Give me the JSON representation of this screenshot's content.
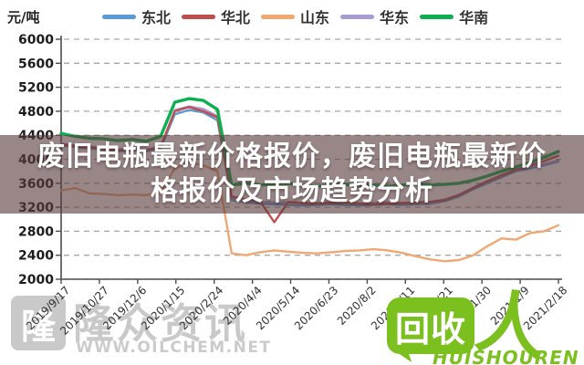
{
  "overlay": {
    "title_line1": "废旧电瓶最新价格报价，废旧电瓶最新价",
    "title_line2": "格报价及市场趋势分析"
  },
  "watermarks": {
    "oilchem": {
      "logo_char": "隆",
      "name": "隆众资讯",
      "url": "WWW.OILCHEM.NET"
    },
    "huishouren": {
      "badge_text": "回收",
      "person_glyph": "人",
      "wordmark": "HUISHOUREN",
      "brand_color": "#7cc01f"
    }
  },
  "chart_data": {
    "type": "line",
    "unit": "元/吨",
    "legend_position": "top",
    "grid": true,
    "ylim": [
      2000,
      6000
    ],
    "ytick_step": 400,
    "y_ticks": [
      "6000",
      "5600",
      "5200",
      "4800",
      "4400",
      "4000",
      "3600",
      "3200",
      "2800",
      "2400",
      "2000"
    ],
    "x_tick_labels": [
      "2019/9/17",
      "2019/10/27",
      "2019/12/6",
      "2020/1/15",
      "2020/2/24",
      "2020/4/4",
      "2020/5/14",
      "2020/6/23",
      "2020/8/2",
      "2020/9/11",
      "2020/10/21",
      "2020/11/30",
      "2021/1/9",
      "2021/2/18"
    ],
    "series": [
      {
        "name": "东北",
        "color": "#5b9bd5",
        "width": 2.4,
        "draw_order": 1,
        "values": [
          4230,
          4200,
          4180,
          4160,
          4130,
          4150,
          4130,
          4180,
          4750,
          4820,
          4780,
          4650,
          3320,
          3280,
          3260,
          3250,
          3240,
          3230,
          3240,
          3250,
          3240,
          3230,
          3240,
          3250,
          3240,
          3250,
          3260,
          3300,
          3380,
          3500,
          3600,
          3700,
          3800,
          3850,
          3900,
          3960
        ]
      },
      {
        "name": "华北",
        "color": "#bf4f4c",
        "width": 2.4,
        "draw_order": 3,
        "values": [
          4250,
          4220,
          4200,
          4180,
          4150,
          4170,
          4150,
          4200,
          4800,
          4870,
          4800,
          4700,
          3380,
          3330,
          3300,
          2950,
          3290,
          3270,
          3260,
          3270,
          3280,
          3260,
          3250,
          3260,
          3270,
          3280,
          3290,
          3320,
          3400,
          3520,
          3630,
          3730,
          3820,
          3900,
          3970,
          4060
        ]
      },
      {
        "name": "山东",
        "color": "#f0a873",
        "width": 2.4,
        "draw_order": 0,
        "values": [
          3480,
          3520,
          3430,
          3420,
          3400,
          3410,
          3400,
          3450,
          3850,
          3950,
          3900,
          3800,
          2430,
          2400,
          2450,
          2480,
          2460,
          2440,
          2430,
          2450,
          2470,
          2480,
          2500,
          2480,
          2440,
          2380,
          2330,
          2300,
          2320,
          2400,
          2550,
          2680,
          2660,
          2770,
          2800,
          2900
        ]
      },
      {
        "name": "华东",
        "color": "#a89cd4",
        "width": 2.4,
        "draw_order": 2,
        "values": [
          4260,
          4230,
          4210,
          4190,
          4160,
          4180,
          4160,
          4210,
          4820,
          4880,
          4840,
          4720,
          3350,
          3310,
          3290,
          3280,
          3270,
          3260,
          3270,
          3280,
          3270,
          3260,
          3270,
          3280,
          3270,
          3280,
          3290,
          3330,
          3410,
          3530,
          3640,
          3740,
          3830,
          3880,
          3920,
          3980
        ]
      },
      {
        "name": "华南",
        "color": "#0caf50",
        "width": 3.4,
        "draw_order": 4,
        "values": [
          4430,
          4380,
          4350,
          4340,
          4310,
          4330,
          4300,
          4380,
          4950,
          5010,
          4980,
          4830,
          3570,
          3600,
          3570,
          3590,
          3600,
          3570,
          3550,
          3560,
          3580,
          3560,
          3570,
          3550,
          3570,
          3590,
          3570,
          3580,
          3600,
          3650,
          3720,
          3800,
          3870,
          3950,
          4030,
          4130
        ]
      }
    ]
  }
}
